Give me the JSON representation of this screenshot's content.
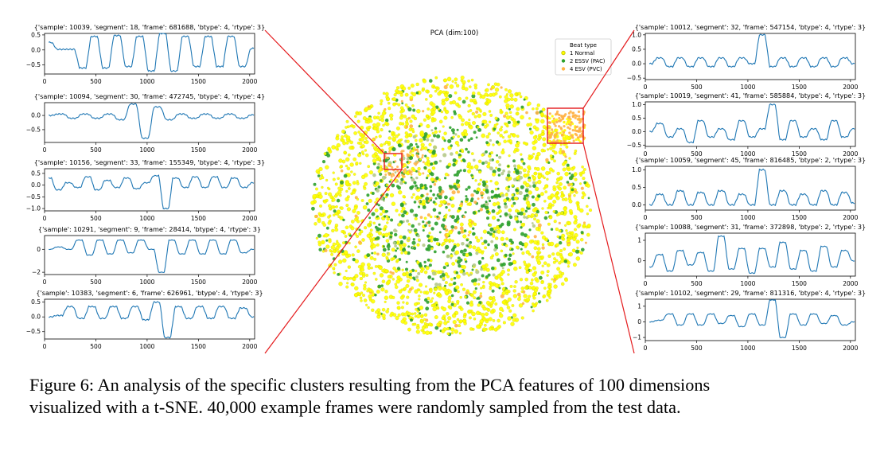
{
  "chart_data": [
    {
      "type": "line",
      "title": "{'sample': 10039, 'segment': 18, 'frame': 681688, 'btype': 4, 'rtype': 3}",
      "x_ticks": [
        "0",
        "500",
        "1000",
        "1500",
        "2000"
      ],
      "y_ticks": [
        "0.5",
        "0.0",
        "−0.5"
      ],
      "xlim": [
        0,
        2048
      ],
      "ylim": [
        -0.8,
        0.55
      ],
      "series": [
        {
          "values": [
            0.25,
            0.02,
            0.02,
            -0.6,
            0.45,
            -0.6,
            0.48,
            -0.55,
            0.45,
            -0.7,
            0.55,
            -0.7,
            0.45,
            -0.55,
            0.45,
            -0.55,
            0.45,
            -0.55,
            0.05
          ]
        }
      ]
    },
    {
      "type": "line",
      "title": "{'sample': 10094, 'segment': 30, 'frame': 472745, 'btype': 4, 'rtype': 4}",
      "x_ticks": [
        "0",
        "500",
        "1000",
        "1500",
        "2000"
      ],
      "y_ticks": [
        "0.0",
        "−0.5"
      ],
      "xlim": [
        0,
        2048
      ],
      "ylim": [
        -0.95,
        0.45
      ],
      "series": [
        {
          "values": [
            0.0,
            0.05,
            -0.1,
            0.05,
            -0.1,
            0.05,
            -0.15,
            0.4,
            -0.8,
            0.3,
            -0.15,
            0.05,
            -0.1,
            0.05,
            -0.1,
            0.05,
            -0.1,
            0.02
          ]
        }
      ]
    },
    {
      "type": "line",
      "title": "{'sample': 10156, 'segment': 33, 'frame': 155349, 'btype': 4, 'rtype': 3}",
      "x_ticks": [
        "0",
        "500",
        "1000",
        "1500",
        "2000"
      ],
      "y_ticks": [
        "0.5",
        "0.0",
        "−0.5",
        "−1.0"
      ],
      "xlim": [
        0,
        2048
      ],
      "ylim": [
        -1.1,
        0.7
      ],
      "series": [
        {
          "values": [
            0.3,
            -0.2,
            0.1,
            -0.1,
            0.35,
            -0.2,
            0.2,
            -0.1,
            0.3,
            -0.15,
            0.1,
            0.4,
            -1.0,
            0.3,
            -0.1,
            0.35,
            -0.1,
            0.35,
            -0.1,
            0.3,
            -0.1,
            0.1
          ]
        }
      ]
    },
    {
      "type": "line",
      "title": "{'sample': 10291, 'segment': 9, 'frame': 28414, 'btype': 4, 'rtype': 3}",
      "x_ticks": [
        "0",
        "500",
        "1000",
        "1500",
        "2000"
      ],
      "y_ticks": [
        "0",
        "−2"
      ],
      "xlim": [
        0,
        2048
      ],
      "ylim": [
        -2.2,
        1.2
      ],
      "series": [
        {
          "values": [
            0.0,
            0.2,
            0.0,
            0.8,
            -0.5,
            0.8,
            -0.4,
            0.8,
            -0.3,
            0.8,
            0.0,
            -2.0,
            0.8,
            -0.4,
            0.8,
            -0.4,
            0.8,
            -0.4,
            0.8,
            -0.3,
            0.0
          ]
        }
      ]
    },
    {
      "type": "line",
      "title": "{'sample': 10383, 'segment': 6, 'frame': 626961, 'btype': 4, 'rtype': 3}",
      "x_ticks": [
        "0",
        "500",
        "1000",
        "1500",
        "2000"
      ],
      "y_ticks": [
        "0.5",
        "0.0",
        "−0.5"
      ],
      "xlim": [
        0,
        2048
      ],
      "ylim": [
        -0.75,
        0.6
      ],
      "series": [
        {
          "values": [
            0.0,
            0.05,
            0.35,
            -0.05,
            0.35,
            -0.05,
            0.35,
            -0.05,
            0.35,
            -0.1,
            0.5,
            -0.7,
            0.35,
            -0.05,
            0.35,
            -0.05,
            0.35,
            -0.05,
            0.3,
            0.0
          ]
        }
      ]
    },
    {
      "type": "scatter",
      "title": "PCA (dim:100)",
      "legend": {
        "title": "Beat type",
        "position": "top-right",
        "entries": [
          {
            "name": "1 Normal",
            "color": "#ffff00"
          },
          {
            "name": "2 ESSV (PAC)",
            "color": "#2ca02c"
          },
          {
            "name": "4 ESV (PVC)",
            "color": "#ffb347"
          }
        ]
      }
    },
    {
      "type": "line",
      "title": "{'sample': 10012, 'segment': 32, 'frame': 547154, 'btype': 4, 'rtype': 3}",
      "x_ticks": [
        "0",
        "500",
        "1000",
        "1500",
        "2000"
      ],
      "y_ticks": [
        "1.0",
        "0.5",
        "0.0",
        "−0.5"
      ],
      "xlim": [
        0,
        2048
      ],
      "ylim": [
        -0.55,
        1.05
      ],
      "series": [
        {
          "values": [
            0.0,
            0.2,
            -0.1,
            0.2,
            -0.1,
            0.2,
            -0.1,
            0.2,
            -0.1,
            0.2,
            0.0,
            1.0,
            -0.1,
            0.2,
            -0.1,
            0.2,
            -0.1,
            0.2,
            -0.1,
            0.2,
            0.0
          ]
        }
      ]
    },
    {
      "type": "line",
      "title": "{'sample': 10019, 'segment': 41, 'frame': 585884, 'btype': 4, 'rtype': 3}",
      "x_ticks": [
        "0",
        "500",
        "1000",
        "1500",
        "2000"
      ],
      "y_ticks": [
        "1.0",
        "0.5",
        "0.0",
        "−0.5"
      ],
      "xlim": [
        0,
        2048
      ],
      "ylim": [
        -0.55,
        1.1
      ],
      "series": [
        {
          "values": [
            0.0,
            0.3,
            -0.2,
            0.1,
            -0.4,
            0.4,
            -0.2,
            0.1,
            -0.3,
            0.4,
            -0.2,
            0.1,
            1.0,
            -0.3,
            0.4,
            -0.2,
            0.1,
            -0.3,
            0.4,
            -0.2,
            0.1
          ]
        }
      ]
    },
    {
      "type": "line",
      "title": "{'sample': 10059, 'segment': 45, 'frame': 816485, 'btype': 2, 'rtype': 3}",
      "x_ticks": [
        "0",
        "500",
        "1000",
        "1500",
        "2000"
      ],
      "y_ticks": [
        "1.0",
        "0.5",
        "0.0"
      ],
      "xlim": [
        0,
        2048
      ],
      "ylim": [
        -0.15,
        1.1
      ],
      "series": [
        {
          "values": [
            0.0,
            0.3,
            0.0,
            0.4,
            0.0,
            0.35,
            0.0,
            0.4,
            0.0,
            0.3,
            0.0,
            1.0,
            0.0,
            0.4,
            0.0,
            0.3,
            0.0,
            0.4,
            0.0,
            0.35,
            0.05
          ]
        }
      ]
    },
    {
      "type": "line",
      "title": "{'sample': 10088, 'segment': 31, 'frame': 372898, 'btype': 2, 'rtype': 3}",
      "x_ticks": [
        "0",
        "500",
        "1000",
        "1500",
        "2000"
      ],
      "y_ticks": [
        "1",
        "0"
      ],
      "xlim": [
        0,
        2048
      ],
      "ylim": [
        -0.75,
        1.35
      ],
      "series": [
        {
          "values": [
            -0.3,
            0.3,
            -0.5,
            0.5,
            -0.2,
            0.4,
            -0.5,
            1.2,
            -0.4,
            0.6,
            -0.6,
            0.6,
            -0.3,
            0.9,
            -0.4,
            0.5,
            -0.5,
            0.7,
            -0.3,
            0.5,
            0.0
          ]
        }
      ]
    },
    {
      "type": "line",
      "title": "{'sample': 10102, 'segment': 29, 'frame': 811316, 'btype': 4, 'rtype': 3}",
      "x_ticks": [
        "0",
        "500",
        "1000",
        "1500",
        "2000"
      ],
      "y_ticks": [
        "1",
        "0",
        "−1"
      ],
      "xlim": [
        0,
        2048
      ],
      "ylim": [
        -1.2,
        1.45
      ],
      "series": [
        {
          "values": [
            0.0,
            0.1,
            0.5,
            -0.2,
            0.5,
            -0.2,
            0.5,
            -0.1,
            0.4,
            -0.3,
            0.5,
            -0.2,
            1.4,
            -1.0,
            0.5,
            -0.2,
            0.5,
            -0.1,
            0.4,
            -0.2,
            0.0
          ]
        }
      ]
    }
  ],
  "caption": {
    "line1": "Figure 6: An analysis of the specific clusters resulting from the PCA features of 100 dimensions",
    "line2": "visualized with a t-SNE. 40,000 example frames were randomly sampled from the test data."
  }
}
